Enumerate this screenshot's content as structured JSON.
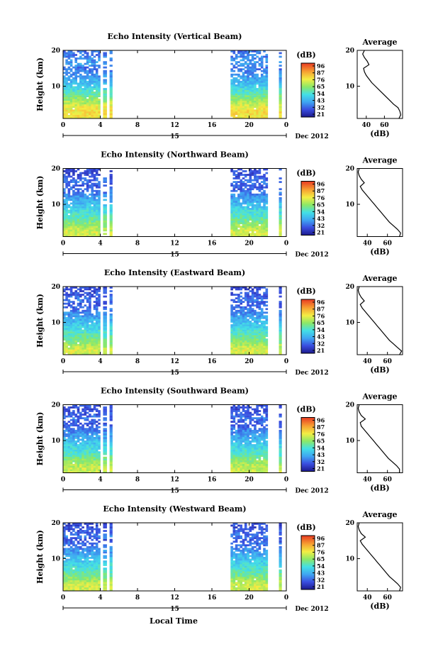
{
  "figure": {
    "xlabel": "Local Time",
    "date_label": "Dec 2012",
    "day_label": "15",
    "cbar_unit": "(dB)",
    "cbar_ticks": [
      "96",
      "87",
      "76",
      "65",
      "54",
      "43",
      "32",
      "21"
    ]
  },
  "chart_data": [
    {
      "type": "heatmap",
      "title": "Echo Intensity (Vertical Beam)",
      "ylabel": "Height (km)",
      "xlim": [
        0,
        24
      ],
      "ylim": [
        1,
        20
      ],
      "x_ticks": [
        "0",
        "4",
        "8",
        "12",
        "16",
        "20",
        "0"
      ],
      "y_ticks": [
        "20",
        "10"
      ],
      "data_intervals_hours": [
        [
          0,
          4.0
        ],
        [
          4.3,
          4.7
        ],
        [
          5.0,
          5.3
        ],
        [
          18.0,
          22.0
        ],
        [
          23.2,
          23.5
        ]
      ],
      "colorbar": {
        "unit": "(dB)",
        "ticks": [
          96,
          87,
          76,
          65,
          54,
          43,
          32,
          21
        ]
      },
      "profile": {
        "title": "Average",
        "xlabel": "(dB)",
        "x_ticks": [
          "40",
          "60"
        ],
        "y_ticks": [
          "20",
          "10"
        ],
        "xlim": [
          30,
          80
        ],
        "ylim": [
          1,
          20
        ],
        "height": [
          1,
          2,
          3,
          4,
          5,
          6,
          7,
          8,
          9,
          10,
          11,
          12,
          13,
          14,
          15,
          16,
          17,
          18,
          19,
          20
        ],
        "db": [
          76,
          78,
          77,
          75,
          70,
          66,
          62,
          58,
          54,
          50,
          46,
          43,
          40,
          38,
          37,
          43,
          41,
          38,
          36,
          38
        ]
      }
    },
    {
      "type": "heatmap",
      "title": "Echo Intensity (Northward Beam)",
      "ylabel": "Height (km)",
      "xlim": [
        0,
        24
      ],
      "ylim": [
        1,
        20
      ],
      "x_ticks": [
        "0",
        "4",
        "8",
        "12",
        "16",
        "20",
        "0"
      ],
      "y_ticks": [
        "20",
        "10"
      ],
      "data_intervals_hours": [
        [
          0,
          4.0
        ],
        [
          4.3,
          4.7
        ],
        [
          5.0,
          5.3
        ],
        [
          18.0,
          22.0
        ],
        [
          23.2,
          23.5
        ]
      ],
      "colorbar": {
        "unit": "(dB)",
        "ticks": [
          96,
          87,
          76,
          65,
          54,
          43,
          32,
          21
        ]
      },
      "profile": {
        "title": "Average",
        "xlabel": "(dB)",
        "x_ticks": [
          "40",
          "60"
        ],
        "y_ticks": [
          "20",
          "10"
        ],
        "xlim": [
          30,
          75
        ],
        "ylim": [
          1,
          20
        ],
        "height": [
          1,
          2,
          3,
          4,
          5,
          6,
          7,
          8,
          9,
          10,
          11,
          12,
          13,
          14,
          15,
          16,
          17,
          18,
          19,
          20
        ],
        "db": [
          72,
          73,
          70,
          66,
          62,
          59,
          56,
          53,
          50,
          47,
          44,
          41,
          38,
          35,
          33,
          37,
          34,
          32,
          31,
          32
        ]
      }
    },
    {
      "type": "heatmap",
      "title": "Echo Intensity (Eastward Beam)",
      "ylabel": "Height (km)",
      "xlim": [
        0,
        24
      ],
      "ylim": [
        1,
        20
      ],
      "x_ticks": [
        "0",
        "4",
        "8",
        "12",
        "16",
        "20",
        "0"
      ],
      "y_ticks": [
        "20",
        "10"
      ],
      "data_intervals_hours": [
        [
          0,
          4.0
        ],
        [
          4.3,
          4.7
        ],
        [
          5.0,
          5.3
        ],
        [
          18.0,
          22.0
        ],
        [
          23.2,
          23.5
        ]
      ],
      "colorbar": {
        "unit": "(dB)",
        "ticks": [
          96,
          87,
          76,
          65,
          54,
          43,
          32,
          21
        ]
      },
      "profile": {
        "title": "Average",
        "xlabel": "(dB)",
        "x_ticks": [
          "40",
          "60"
        ],
        "y_ticks": [
          "20",
          "10"
        ],
        "xlim": [
          30,
          75
        ],
        "ylim": [
          1,
          20
        ],
        "height": [
          1,
          2,
          3,
          4,
          5,
          6,
          7,
          8,
          9,
          10,
          11,
          12,
          13,
          14,
          15,
          16,
          17,
          18,
          19,
          20
        ],
        "db": [
          72,
          74,
          70,
          66,
          62,
          59,
          56,
          53,
          50,
          47,
          44,
          41,
          38,
          35,
          33,
          37,
          34,
          32,
          31,
          32
        ]
      }
    },
    {
      "type": "heatmap",
      "title": "Echo Intensity (Southward Beam)",
      "ylabel": "Height (km)",
      "xlim": [
        0,
        24
      ],
      "ylim": [
        1,
        20
      ],
      "x_ticks": [
        "0",
        "4",
        "8",
        "12",
        "16",
        "20",
        "0"
      ],
      "y_ticks": [
        "20",
        "10"
      ],
      "data_intervals_hours": [
        [
          0,
          4.0
        ],
        [
          4.3,
          4.7
        ],
        [
          5.0,
          5.3
        ],
        [
          18.0,
          22.0
        ],
        [
          23.2,
          23.5
        ]
      ],
      "colorbar": {
        "unit": "(dB)",
        "ticks": [
          96,
          87,
          76,
          65,
          54,
          43,
          32,
          21
        ]
      },
      "profile": {
        "title": "Average",
        "xlabel": "(dB)",
        "x_ticks": [
          "40",
          "60"
        ],
        "y_ticks": [
          "20",
          "10"
        ],
        "xlim": [
          30,
          75
        ],
        "ylim": [
          1,
          20
        ],
        "height": [
          1,
          2,
          3,
          4,
          5,
          6,
          7,
          8,
          9,
          10,
          11,
          12,
          13,
          14,
          15,
          16,
          17,
          18,
          19,
          20
        ],
        "db": [
          72,
          72,
          69,
          65,
          61,
          58,
          55,
          52,
          49,
          46,
          43,
          40,
          37,
          34,
          33,
          38,
          34,
          32,
          31,
          32
        ]
      }
    },
    {
      "type": "heatmap",
      "title": "Echo Intensity (Westward Beam)",
      "ylabel": "Height (km)",
      "xlim": [
        0,
        24
      ],
      "ylim": [
        1,
        20
      ],
      "x_ticks": [
        "0",
        "4",
        "8",
        "12",
        "16",
        "20",
        "0"
      ],
      "y_ticks": [
        "20",
        "10"
      ],
      "data_intervals_hours": [
        [
          0,
          4.0
        ],
        [
          4.3,
          4.7
        ],
        [
          5.0,
          5.3
        ],
        [
          18.0,
          22.0
        ],
        [
          23.2,
          23.5
        ]
      ],
      "colorbar": {
        "unit": "(dB)",
        "ticks": [
          96,
          87,
          76,
          65,
          54,
          43,
          32,
          21
        ]
      },
      "profile": {
        "title": "Average",
        "xlabel": "(dB)",
        "x_ticks": [
          "40",
          "60"
        ],
        "y_ticks": [
          "20",
          "10"
        ],
        "xlim": [
          30,
          75
        ],
        "ylim": [
          1,
          20
        ],
        "height": [
          1,
          2,
          3,
          4,
          5,
          6,
          7,
          8,
          9,
          10,
          11,
          12,
          13,
          14,
          15,
          16,
          17,
          18,
          19,
          20
        ],
        "db": [
          72,
          73,
          70,
          66,
          62,
          59,
          56,
          53,
          50,
          47,
          44,
          41,
          38,
          35,
          33,
          38,
          34,
          32,
          31,
          32
        ]
      }
    }
  ]
}
